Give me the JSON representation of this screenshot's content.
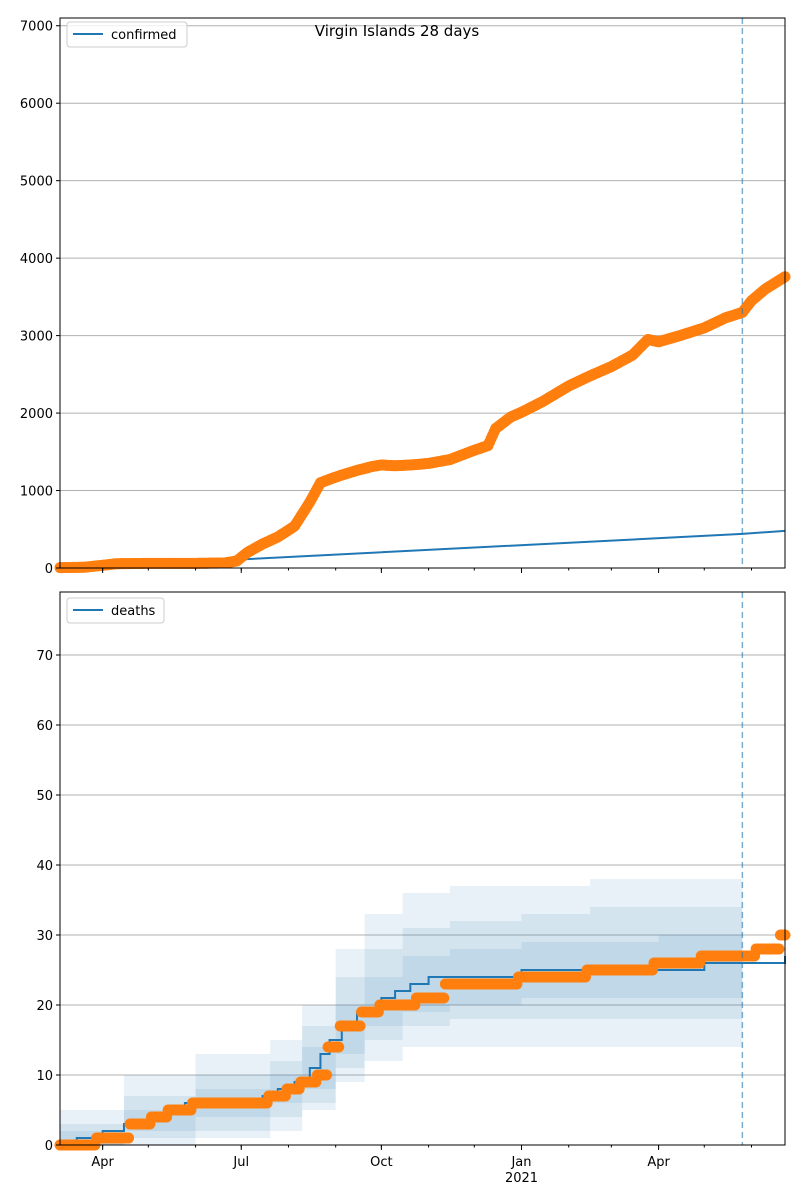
{
  "title": "Virgin Islands 28 days",
  "colors": {
    "model": "#1f77b4",
    "observed": "#ff7f0e",
    "band": "#1f77b4",
    "grid": "#b0b0b0",
    "cutoff": "#1f77b4"
  },
  "x_axis": {
    "ticks": [
      {
        "date": "2020-04-01",
        "label": "Apr"
      },
      {
        "date": "2020-07-01",
        "label": "Jul"
      },
      {
        "date": "2020-10-01",
        "label": "Oct"
      },
      {
        "date": "2021-01-01",
        "label": "Jan"
      },
      {
        "date": "2021-04-01",
        "label": "Apr"
      }
    ],
    "year_label": "2021",
    "range": [
      "2020-03-04",
      "2021-06-23"
    ]
  },
  "chart_data": [
    {
      "type": "line",
      "title": "Virgin Islands 28 days",
      "legend": "confirmed",
      "legend_placement": "top-left",
      "grid": true,
      "ylim": [
        0,
        7100
      ],
      "yticks": [
        0,
        1000,
        2000,
        3000,
        4000,
        5000,
        6000,
        7000
      ],
      "cutoff_date": "2021-05-26",
      "series": [
        {
          "name": "confirmed",
          "kind": "model",
          "x": [
            "2020-06-30",
            "2021-05-26",
            "2021-06-23"
          ],
          "y": [
            110,
            440,
            480
          ]
        },
        {
          "kind": "observed",
          "x": [
            "2020-03-04",
            "2020-03-20",
            "2020-04-01",
            "2020-04-10",
            "2020-05-01",
            "2020-06-01",
            "2020-06-20",
            "2020-06-28",
            "2020-07-05",
            "2020-07-15",
            "2020-07-25",
            "2020-08-05",
            "2020-08-15",
            "2020-08-22",
            "2020-08-30",
            "2020-09-05",
            "2020-09-15",
            "2020-09-25",
            "2020-10-01",
            "2020-10-10",
            "2020-10-20",
            "2020-11-01",
            "2020-11-15",
            "2020-12-01",
            "2020-12-10",
            "2020-12-15",
            "2020-12-25",
            "2021-01-01",
            "2021-01-15",
            "2021-02-01",
            "2021-02-15",
            "2021-03-01",
            "2021-03-15",
            "2021-03-25",
            "2021-04-01",
            "2021-04-15",
            "2021-05-01",
            "2021-05-15",
            "2021-05-26",
            "2021-06-01",
            "2021-06-10",
            "2021-06-23"
          ],
          "y": [
            5,
            10,
            35,
            55,
            60,
            60,
            65,
            90,
            200,
            310,
            400,
            540,
            850,
            1100,
            1160,
            1200,
            1260,
            1310,
            1330,
            1320,
            1330,
            1350,
            1400,
            1520,
            1580,
            1800,
            1950,
            2010,
            2150,
            2350,
            2480,
            2600,
            2750,
            2950,
            2920,
            3000,
            3100,
            3230,
            3300,
            3450,
            3600,
            3760
          ]
        }
      ]
    },
    {
      "type": "line",
      "legend": "deaths",
      "legend_placement": "top-left",
      "grid": true,
      "ylim": [
        0,
        79
      ],
      "yticks": [
        0,
        10,
        20,
        30,
        40,
        50,
        60,
        70
      ],
      "cutoff_date": "2021-05-26",
      "bands": [
        {
          "level": "outer",
          "x": [
            "2020-03-04",
            "2020-04-15",
            "2020-06-01",
            "2020-07-20",
            "2020-08-10",
            "2020-09-01",
            "2020-09-20",
            "2020-10-15",
            "2020-11-15",
            "2021-01-01",
            "2021-02-15",
            "2021-04-01",
            "2021-05-26"
          ],
          "low": [
            0,
            0,
            1,
            2,
            5,
            9,
            12,
            14,
            14,
            14,
            14,
            14,
            15
          ],
          "high": [
            5,
            10,
            13,
            15,
            20,
            28,
            33,
            36,
            37,
            37,
            38,
            38,
            39
          ]
        },
        {
          "level": "middle",
          "x": [
            "2020-03-04",
            "2020-04-15",
            "2020-06-01",
            "2020-07-20",
            "2020-08-10",
            "2020-09-01",
            "2020-09-20",
            "2020-10-15",
            "2020-11-15",
            "2021-01-01",
            "2021-02-15",
            "2021-04-01",
            "2021-05-26"
          ],
          "low": [
            0,
            1,
            2,
            4,
            6,
            11,
            15,
            17,
            18,
            18,
            18,
            18,
            18
          ],
          "high": [
            3,
            7,
            10,
            12,
            17,
            24,
            28,
            31,
            32,
            33,
            34,
            34,
            35
          ]
        },
        {
          "level": "inner",
          "x": [
            "2020-03-04",
            "2020-04-15",
            "2020-06-01",
            "2020-07-20",
            "2020-08-10",
            "2020-09-01",
            "2020-09-20",
            "2020-10-15",
            "2020-11-15",
            "2021-01-01",
            "2021-02-15",
            "2021-04-01",
            "2021-05-26"
          ],
          "low": [
            0,
            2,
            4,
            6,
            8,
            13,
            17,
            19,
            20,
            21,
            21,
            21,
            22
          ],
          "high": [
            2,
            5,
            8,
            10,
            14,
            20,
            24,
            27,
            28,
            29,
            29,
            30,
            30
          ]
        }
      ],
      "series": [
        {
          "name": "deaths",
          "kind": "model",
          "x": [
            "2020-03-04",
            "2020-03-15",
            "2020-04-01",
            "2020-04-15",
            "2020-05-01",
            "2020-05-15",
            "2020-05-25",
            "2020-06-20",
            "2020-07-15",
            "2020-07-25",
            "2020-08-05",
            "2020-08-15",
            "2020-08-22",
            "2020-08-28",
            "2020-09-05",
            "2020-09-15",
            "2020-10-01",
            "2020-10-10",
            "2020-10-20",
            "2020-11-01",
            "2020-12-01",
            "2021-01-01",
            "2021-02-15",
            "2021-03-15",
            "2021-04-01",
            "2021-05-01",
            "2021-05-26",
            "2021-06-23"
          ],
          "y": [
            0,
            1,
            2,
            3,
            4,
            5,
            6,
            6,
            7,
            8,
            9,
            11,
            13,
            15,
            17,
            19,
            21,
            22,
            23,
            24,
            24,
            25,
            25,
            25,
            25,
            26,
            26,
            27
          ]
        },
        {
          "kind": "observed",
          "x": [
            "2020-03-04",
            "2020-04-01",
            "2020-04-10",
            "2020-04-20",
            "2020-05-05",
            "2020-05-15",
            "2020-06-01",
            "2020-07-01",
            "2020-07-10",
            "2020-07-20",
            "2020-08-01",
            "2020-08-10",
            "2020-08-15",
            "2020-08-20",
            "2020-08-28",
            "2020-09-05",
            "2020-09-20",
            "2020-10-01",
            "2020-10-15",
            "2020-10-25",
            "2020-11-15",
            "2020-12-15",
            "2021-01-01",
            "2021-02-01",
            "2021-02-15",
            "2021-03-15",
            "2021-03-31",
            "2021-04-15",
            "2021-05-01",
            "2021-05-26",
            "2021-06-05",
            "2021-06-15",
            "2021-06-20",
            "2021-06-23"
          ],
          "y": [
            0,
            1,
            1,
            3,
            4,
            5,
            6,
            6,
            6,
            7,
            8,
            9,
            9,
            10,
            14,
            17,
            19,
            20,
            20,
            21,
            23,
            23,
            24,
            24,
            25,
            25,
            26,
            26,
            27,
            27,
            28,
            28,
            30,
            30
          ]
        }
      ]
    }
  ]
}
